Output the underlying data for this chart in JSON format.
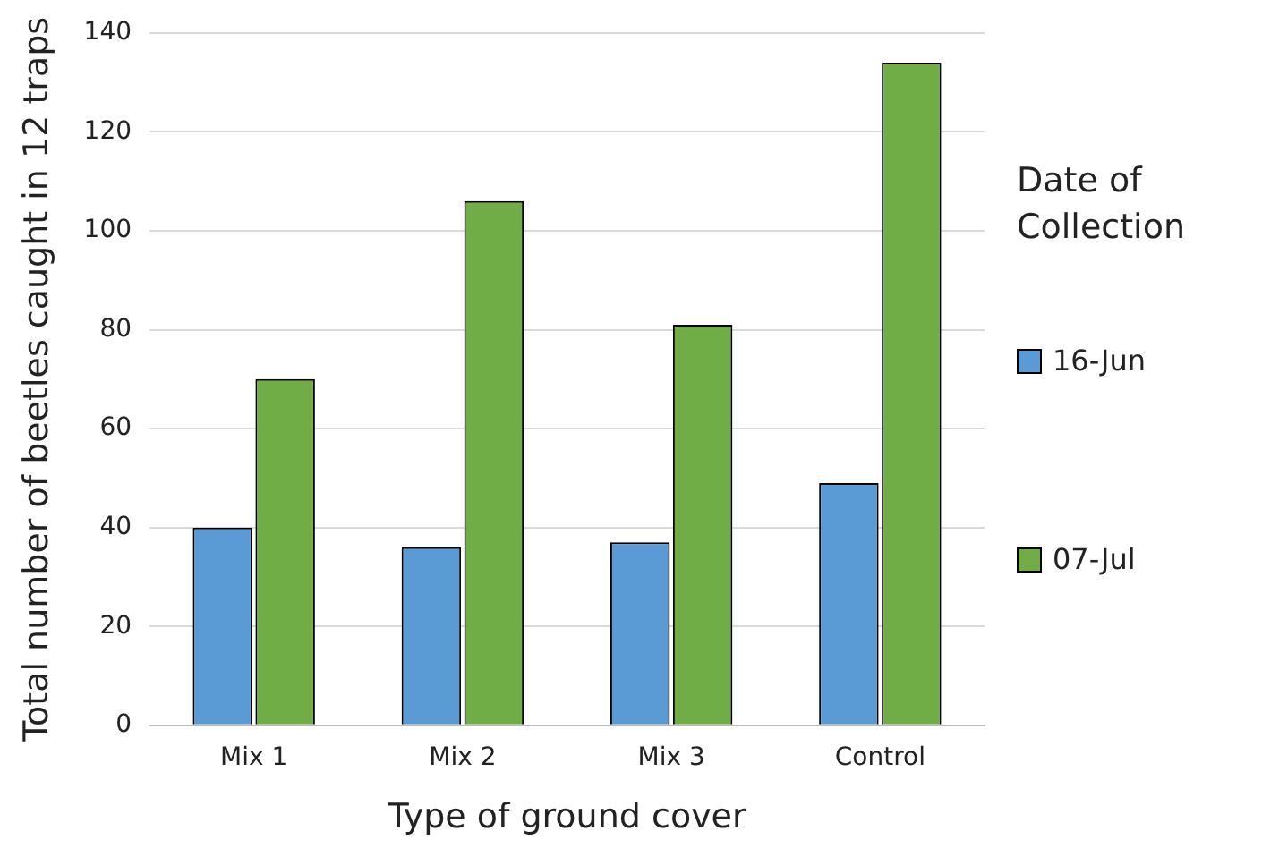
{
  "chart_data": {
    "type": "bar",
    "xlabel": "Type of ground cover",
    "ylabel": "Total number of beetles caught in 12 traps",
    "legend_title": "Date of Collection",
    "categories": [
      "Mix 1",
      "Mix 2",
      "Mix 3",
      "Control"
    ],
    "series": [
      {
        "name": "16-Jun",
        "color": "#5b9bd5",
        "values": [
          40,
          36,
          37,
          49
        ]
      },
      {
        "name": "07-Jul",
        "color": "#70ad47",
        "values": [
          70,
          106,
          81,
          134
        ]
      }
    ],
    "ylim": [
      0,
      140
    ],
    "yticks": [
      0,
      20,
      40,
      60,
      80,
      100,
      120,
      140
    ],
    "grid": "y",
    "legend": "right"
  }
}
